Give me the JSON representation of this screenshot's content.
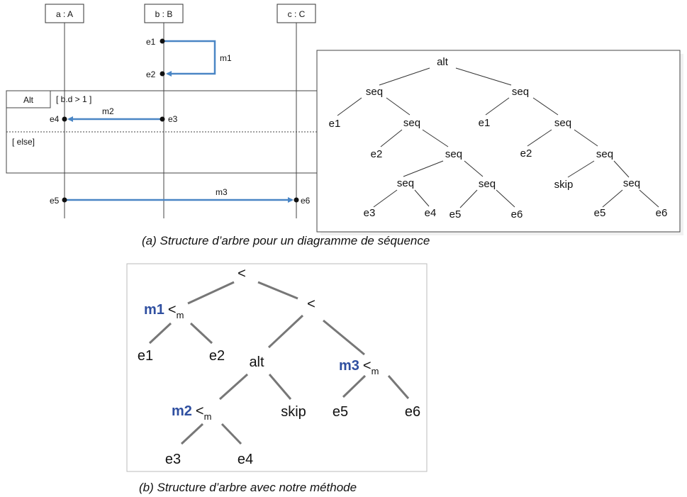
{
  "seq": {
    "lifelines": [
      "a : A",
      "b : B",
      "c : C"
    ],
    "events": [
      "e1",
      "e2",
      "e3",
      "e4",
      "e5",
      "e6"
    ],
    "messages": [
      "m1",
      "m2",
      "m3"
    ],
    "fragment": {
      "operator": "Alt",
      "guard1": "[ b.d > 1 ]",
      "guard2": "[ else]"
    }
  },
  "tree_a": {
    "root": "alt",
    "seq": "seq",
    "skip": "skip",
    "e1": "e1",
    "e2": "e2",
    "e3": "e3",
    "e4": "e4",
    "e5": "e5",
    "e6": "e6"
  },
  "tree_b": {
    "root_op": "<",
    "lt": "<",
    "m": "m",
    "m1": "m1",
    "m2": "m2",
    "m3": "m3",
    "alt": "alt",
    "skip": "skip",
    "e1": "e1",
    "e2": "e2",
    "e3": "e3",
    "e4": "e4",
    "e5": "e5",
    "e6": "e6"
  },
  "captions": {
    "a": "(a) Structure d’arbre pour un diagramme de séquence",
    "b": "(b) Structure d’arbre avec notre méthode"
  },
  "colors": {
    "arrow": "#4a86c5",
    "tree_line": "#777777",
    "method_label": "#2f4fa0"
  }
}
